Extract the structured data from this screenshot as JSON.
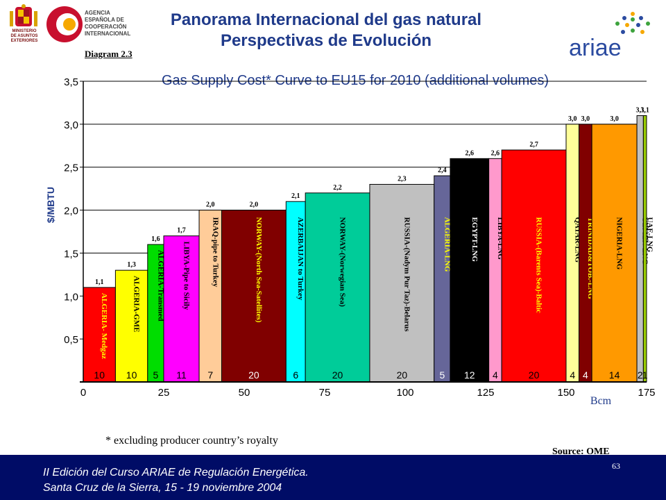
{
  "header": {
    "title_line1": "Panorama Internacional del gas natural",
    "title_line2": "Perspectivas de Evolución",
    "agency_lines": [
      "AGENCIA",
      "ESPAÑOLA DE",
      "COOPERACIÓN",
      "INTERNACIONAL"
    ],
    "ministry_lines": [
      "MINISTERIO",
      "DE ASUNTOS",
      "EXTERIORES"
    ],
    "ariae_logo": "ariae",
    "colors": {
      "title": "#1f3a8a",
      "footer_bg": "#000c66"
    }
  },
  "diagram_label": "Diagram 2.3",
  "footnote": "* excluding producer country’s royalty",
  "source": "Source: OME",
  "footer": {
    "line1": "II Edición del Curso ARIAE de Regulación Energética.",
    "line2": "Santa Cruz de la Sierra, 15 - 19 noviembre 2004",
    "page_number": "63"
  },
  "chart_data": {
    "type": "bar",
    "title": "Gas Supply Cost* Curve  to EU15 for 2010 (additional volumes)",
    "xlabel": "Bcm",
    "ylabel": "$/MBTU",
    "xlim": [
      0,
      175
    ],
    "ylim": [
      0,
      3.5
    ],
    "x_ticks": [
      "0",
      "25",
      "50",
      "75",
      "100",
      "125",
      "150",
      "175"
    ],
    "x_tick_values": [
      0,
      25,
      50,
      75,
      100,
      125,
      150,
      175
    ],
    "y_ticks": [
      "0,5",
      "1,0",
      "1,5",
      "2,0",
      "2,5",
      "3,0",
      "3,5"
    ],
    "y_tick_values": [
      0.5,
      1.0,
      1.5,
      2.0,
      2.5,
      3.0,
      3.5
    ],
    "grid": "horizontal",
    "bars": [
      {
        "name": "ALGERIA- Medgaz",
        "cost": 1.1,
        "cost_label": "1,1",
        "volume": 10,
        "volume_label": "10",
        "color": "#ff0000",
        "text_color": "#ffff00"
      },
      {
        "name": "ALGERIA-GME",
        "cost": 1.3,
        "cost_label": "1,3",
        "volume": 10,
        "volume_label": "10",
        "color": "#ffff00",
        "text_color": "#000000"
      },
      {
        "name": "ALGERIA-Transmed",
        "cost": 1.6,
        "cost_label": "1,6",
        "volume": 5,
        "volume_label": "5",
        "color": "#00dd00",
        "text_color": "#000000"
      },
      {
        "name": "LIBYA-Pipe to Sicily",
        "cost": 1.7,
        "cost_label": "1,7",
        "volume": 11,
        "volume_label": "11",
        "color": "#ff00ff",
        "text_color": "#000000"
      },
      {
        "name": "IRAQ-pipe to Turkey",
        "cost": 2.0,
        "cost_label": "2,0",
        "volume": 7,
        "volume_label": "7",
        "color": "#ffcc99",
        "text_color": "#000000"
      },
      {
        "name": "NORWAY-(North  Sea-Satellites)",
        "cost": 2.0,
        "cost_label": "2,0",
        "volume": 20,
        "volume_label": "20",
        "color": "#800000",
        "text_color": "#ffff00"
      },
      {
        "name": "AZERBAIJAN to Turkey",
        "cost": 2.1,
        "cost_label": "2,1",
        "volume": 6,
        "volume_label": "6",
        "color": "#00ffff",
        "text_color": "#000000"
      },
      {
        "name": "NORWAY-(Norwegian Sea)",
        "cost": 2.2,
        "cost_label": "2,2",
        "volume": 20,
        "volume_label": "20",
        "color": "#00cc99",
        "text_color": "#000000"
      },
      {
        "name": "RUSSIA-(Nadym Pur Taz)-Belarus",
        "cost": 2.3,
        "cost_label": "2,3",
        "volume": 20,
        "volume_label": "20",
        "color": "#c0c0c0",
        "text_color": "#000000"
      },
      {
        "name": "ALGERIA-LNG",
        "cost": 2.4,
        "cost_label": "2,4",
        "volume": 5,
        "volume_label": "5",
        "color": "#666699",
        "text_color": "#ffff00"
      },
      {
        "name": "EGYPT-LNG",
        "cost": 2.6,
        "cost_label": "2,6",
        "volume": 12,
        "volume_label": "12",
        "color": "#000000",
        "text_color": "#ffffff"
      },
      {
        "name": "LIBYA-LNG",
        "cost": 2.6,
        "cost_label": "2,6",
        "volume": 4,
        "volume_label": "4",
        "color": "#ff99cc",
        "text_color": "#000000"
      },
      {
        "name": "RUSSIA-(Barents Sea)-Baltic",
        "cost": 2.7,
        "cost_label": "2,7",
        "volume": 20,
        "volume_label": "20",
        "color": "#ff0000",
        "text_color": "#ffff00"
      },
      {
        "name": "QATAR-LNG",
        "cost": 3.0,
        "cost_label": "3,0",
        "volume": 4,
        "volume_label": "4",
        "color": "#ffff99",
        "text_color": "#000000"
      },
      {
        "name": "TRINIDAD&TOB.-LNG",
        "cost": 3.0,
        "cost_label": "3,0",
        "volume": 4,
        "volume_label": "4",
        "color": "#800000",
        "text_color": "#ffff00"
      },
      {
        "name": "NIGERIA-LNG",
        "cost": 3.0,
        "cost_label": "3,0",
        "volume": 14,
        "volume_label": "14",
        "color": "#ff9900",
        "text_color": "#000000"
      },
      {
        "name": "YEMEN-LNG",
        "cost": 3.1,
        "cost_label": "3,1",
        "volume": 2,
        "volume_label": "2",
        "color": "#c0c0c0",
        "text_color": "#000000"
      },
      {
        "name": "UAE-LNG",
        "cost": 3.1,
        "cost_label": "3,1",
        "volume": 1,
        "volume_label": "1",
        "color": "#99cc00",
        "text_color": "#000000"
      }
    ]
  }
}
